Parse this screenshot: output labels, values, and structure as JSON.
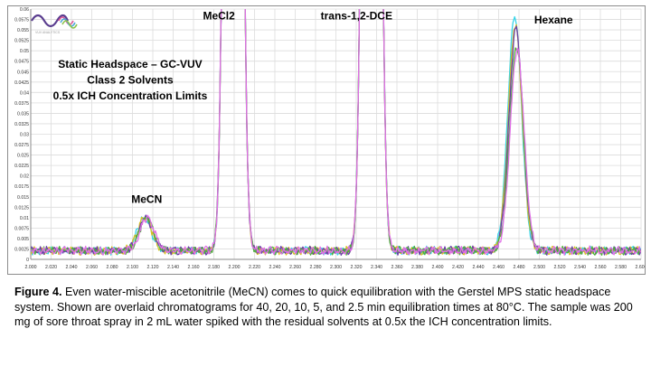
{
  "chart_data": {
    "type": "line",
    "title_lines": [
      "Static Headspace – GC-VUV",
      "Class 2 Solvents",
      "0.5x ICH Concentration Limits"
    ],
    "xlim": [
      2.0,
      2.6
    ],
    "ylim": [
      0,
      0.06
    ],
    "x_ticks": [
      "2.000",
      "2.020",
      "2.040",
      "2.060",
      "2.080",
      "2.100",
      "2.120",
      "2.140",
      "2.160",
      "2.180",
      "2.200",
      "2.220",
      "2.240",
      "2.260",
      "2.280",
      "2.300",
      "2.320",
      "2.340",
      "2.360",
      "2.380",
      "2.400",
      "2.420",
      "2.440",
      "2.460",
      "2.480",
      "2.500",
      "2.520",
      "2.540",
      "2.560",
      "2.580",
      "2.600"
    ],
    "y_ticks": [
      "0",
      "0.0025",
      "0.005",
      "0.0075",
      "0.01",
      "0.0125",
      "0.015",
      "0.0175",
      "0.02",
      "0.0225",
      "0.025",
      "0.0275",
      "0.03",
      "0.0325",
      "0.035",
      "0.0375",
      "0.04",
      "0.0425",
      "0.045",
      "0.0475",
      "0.05",
      "0.0525",
      "0.055",
      "0.0575",
      "0.06"
    ],
    "grid": true,
    "annotations": [
      {
        "text": "MeCl2",
        "x": 2.185,
        "y": 0.0575
      },
      {
        "text": "trans-1,2-DCE",
        "x": 2.285,
        "y": 0.0575
      },
      {
        "text": "Hexane",
        "x": 2.495,
        "y": 0.0565
      },
      {
        "text": "MeCN",
        "x": 2.114,
        "y": 0.0135
      }
    ],
    "peaks": [
      {
        "name": "MeCN",
        "x": 2.113,
        "height": 0.0095
      },
      {
        "name": "MeCl2",
        "x": 2.199,
        "height": "off-scale"
      },
      {
        "name": "trans-1,2-DCE",
        "x": 2.335,
        "height": "off-scale"
      },
      {
        "name": "Hexane",
        "x": 2.477,
        "height": [
          0.0575,
          0.0555,
          0.0545,
          0.0505,
          0.0495
        ]
      }
    ],
    "series": [
      {
        "color": "#35d4e8",
        "hexane_peak": 0.0575
      },
      {
        "color": "#d8c023",
        "hexane_peak": 0.0555
      },
      {
        "color": "#6a3fa8",
        "hexane_peak": 0.0545
      },
      {
        "color": "#4fae3c",
        "hexane_peak": 0.0505
      },
      {
        "color": "#e06fe6",
        "hexane_peak": 0.0495
      }
    ]
  },
  "caption": {
    "label": "Figure 4.",
    "text": "  Even water-miscible acetonitrile (MeCN)  comes to quick equilibration with the Gerstel MPS static headspace system.  Shown are overlaid chromatograms for 40, 20, 10, 5, and 2.5 min equilibration times at 80°C. The sample was 200 mg of sore throat spray in 2 mL water spiked with the residual solvents at 0.5x the ICH concentration limits."
  },
  "logo": {
    "icon": "vuv-wave-logo",
    "text": "VUV ANALYTICS"
  }
}
